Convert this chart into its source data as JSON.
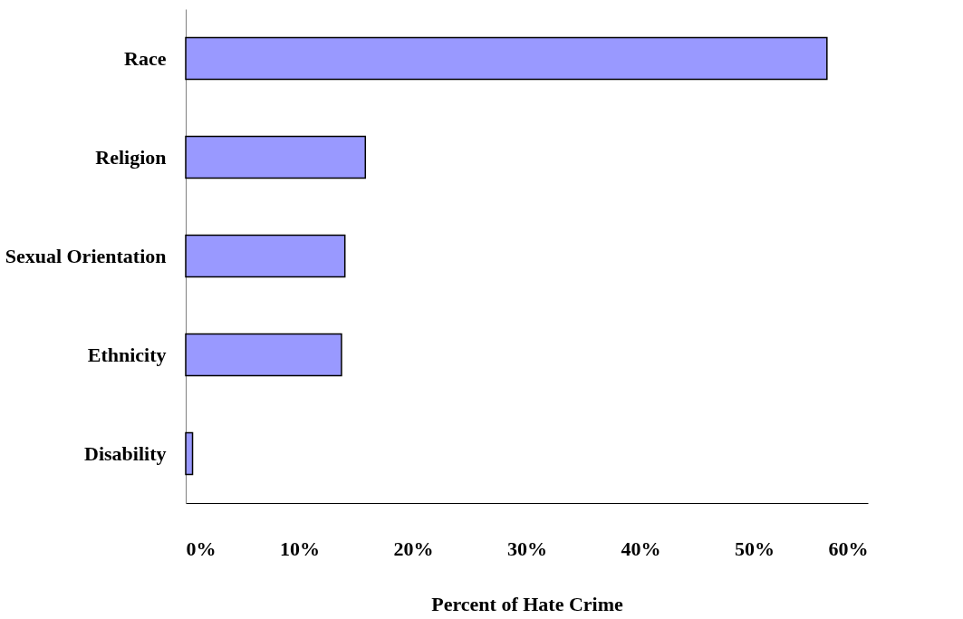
{
  "chart_data": {
    "type": "bar",
    "orientation": "horizontal",
    "xlabel": "Percent of Hate Crime",
    "categories": [
      "Race",
      "Religion",
      "Sexual Orientation",
      "Ethnicity",
      "Disability"
    ],
    "values": [
      56.4,
      15.8,
      14.0,
      13.7,
      0.6
    ],
    "color": "#9999ff",
    "xlim": [
      0,
      60
    ],
    "xticks": [
      {
        "value": 0,
        "label": "0%"
      },
      {
        "value": 10,
        "label": "10%"
      },
      {
        "value": 20,
        "label": "20%"
      },
      {
        "value": 30,
        "label": "30%"
      },
      {
        "value": 40,
        "label": "40%"
      },
      {
        "value": 50,
        "label": "50%"
      },
      {
        "value": 60,
        "label": "60%"
      }
    ],
    "grid": false
  }
}
